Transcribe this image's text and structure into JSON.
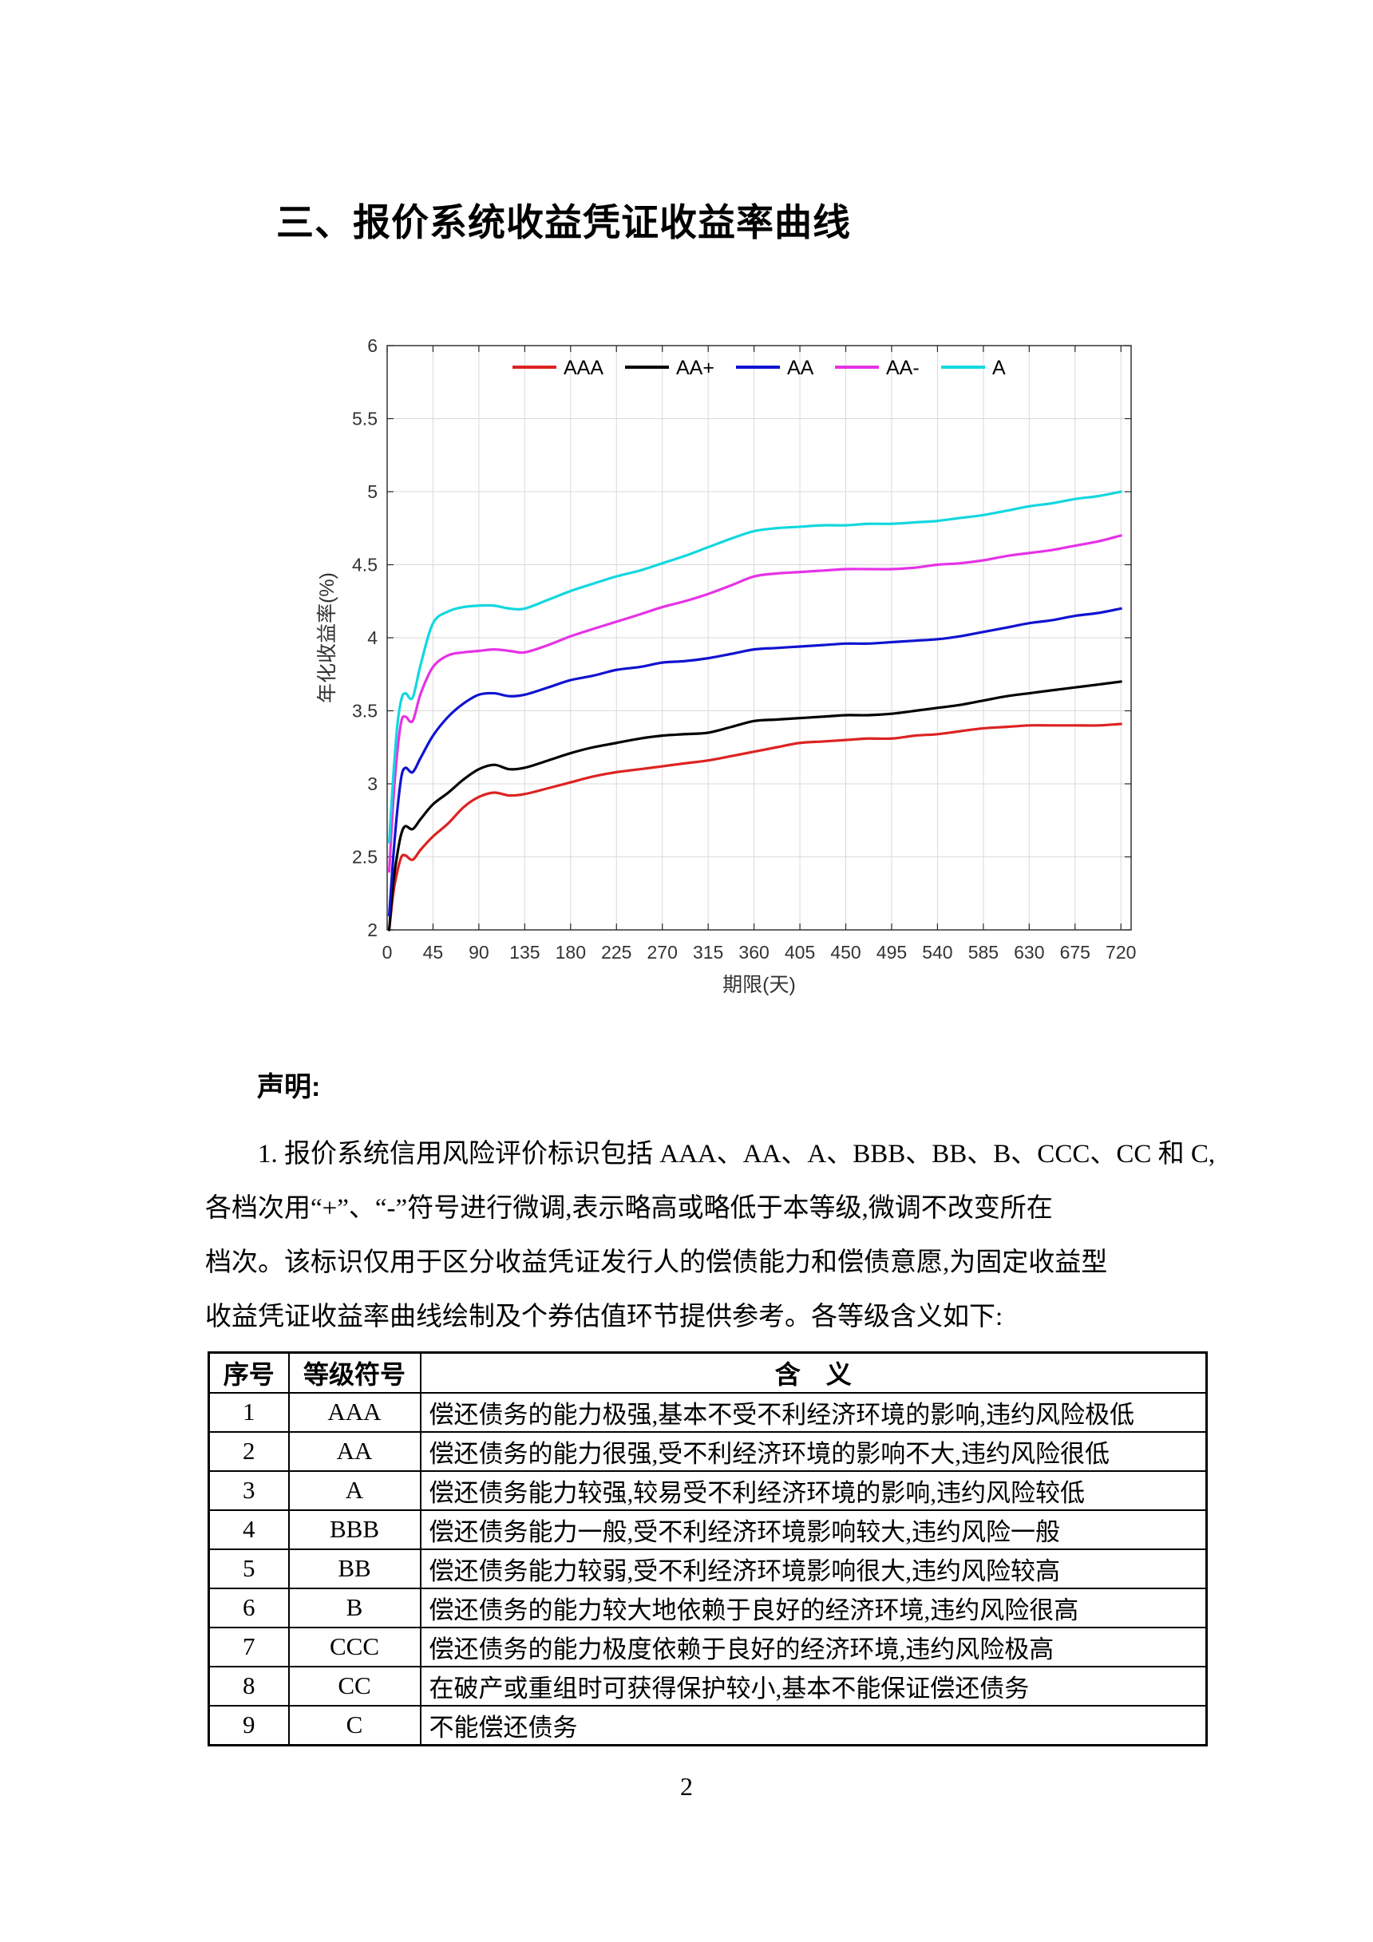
{
  "page": {
    "title": "三、报价系统收益凭证收益率曲线",
    "page_number": "2"
  },
  "statement": {
    "heading": "声明:",
    "lines": [
      "1. 报价系统信用风险评价标识包括 AAA、AA、A、BBB、BB、B、CCC、CC 和 C,",
      "各档次用“+”、“-”符号进行微调,表示略高或略低于本等级,微调不改变所在",
      "档次。该标识仅用于区分收益凭证发行人的偿债能力和偿债意愿,为固定收益型",
      "收益凭证收益率曲线绘制及个券估值环节提供参考。各等级含义如下:"
    ]
  },
  "table": {
    "headers": [
      "序号",
      "等级符号",
      "含　义"
    ],
    "rows": [
      [
        "1",
        "AAA",
        "偿还债务的能力极强,基本不受不利经济环境的影响,违约风险极低"
      ],
      [
        "2",
        "AA",
        "偿还债务的能力很强,受不利经济环境的影响不大,违约风险很低"
      ],
      [
        "3",
        "A",
        "偿还债务能力较强,较易受不利经济环境的影响,违约风险较低"
      ],
      [
        "4",
        "BBB",
        "偿还债务能力一般,受不利经济环境影响较大,违约风险一般"
      ],
      [
        "5",
        "BB",
        "偿还债务能力较弱,受不利经济环境影响很大,违约风险较高"
      ],
      [
        "6",
        "B",
        "偿还债务的能力较大地依赖于良好的经济环境,违约风险很高"
      ],
      [
        "7",
        "CCC",
        "偿还债务的能力极度依赖于良好的经济环境,违约风险极高"
      ],
      [
        "8",
        "CC",
        "在破产或重组时可获得保护较小,基本不能保证偿还债务"
      ],
      [
        "9",
        "C",
        "不能偿还债务"
      ]
    ]
  },
  "chart_data": {
    "type": "line",
    "title": "",
    "xlabel": "期限(天)",
    "ylabel": "年化收益率(%)",
    "xlim": [
      0,
      730
    ],
    "ylim": [
      2,
      6
    ],
    "xticks": [
      0,
      45,
      90,
      135,
      180,
      225,
      270,
      315,
      360,
      405,
      450,
      495,
      540,
      585,
      630,
      675,
      720
    ],
    "yticks": [
      2,
      2.5,
      3,
      3.5,
      4,
      4.5,
      5,
      5.5,
      6
    ],
    "grid": true,
    "legend_position": "top-center",
    "grid_color": "#d9d9d9",
    "axis_color": "#262626",
    "tick_label_color": "#333333",
    "x": [
      2,
      6,
      10,
      14,
      18,
      25,
      33,
      45,
      60,
      75,
      90,
      105,
      120,
      135,
      158,
      180,
      202,
      225,
      248,
      270,
      292,
      315,
      338,
      360,
      382,
      405,
      428,
      450,
      472,
      495,
      518,
      540,
      562,
      585,
      608,
      630,
      652,
      675,
      698,
      720
    ],
    "series": [
      {
        "name": "AAA",
        "color": "#dd2222",
        "values": [
          2.0,
          2.25,
          2.4,
          2.5,
          2.51,
          2.48,
          2.55,
          2.64,
          2.73,
          2.84,
          2.91,
          2.94,
          2.92,
          2.93,
          2.97,
          3.01,
          3.05,
          3.08,
          3.1,
          3.12,
          3.14,
          3.16,
          3.19,
          3.22,
          3.25,
          3.28,
          3.29,
          3.3,
          3.31,
          3.31,
          3.33,
          3.34,
          3.36,
          3.38,
          3.39,
          3.4,
          3.4,
          3.4,
          3.4,
          3.41
        ]
      },
      {
        "name": "AA+",
        "color": "#000000",
        "values": [
          2.0,
          2.32,
          2.52,
          2.66,
          2.71,
          2.69,
          2.76,
          2.86,
          2.94,
          3.03,
          3.1,
          3.13,
          3.1,
          3.11,
          3.16,
          3.21,
          3.25,
          3.28,
          3.31,
          3.33,
          3.34,
          3.35,
          3.39,
          3.43,
          3.44,
          3.45,
          3.46,
          3.47,
          3.47,
          3.48,
          3.5,
          3.52,
          3.54,
          3.57,
          3.6,
          3.62,
          3.64,
          3.66,
          3.68,
          3.7
        ]
      },
      {
        "name": "AA",
        "color": "#1013cf",
        "values": [
          2.1,
          2.5,
          2.82,
          3.05,
          3.11,
          3.08,
          3.18,
          3.33,
          3.46,
          3.55,
          3.61,
          3.62,
          3.6,
          3.61,
          3.66,
          3.71,
          3.74,
          3.78,
          3.8,
          3.83,
          3.84,
          3.86,
          3.89,
          3.92,
          3.93,
          3.94,
          3.95,
          3.96,
          3.96,
          3.97,
          3.98,
          3.99,
          4.01,
          4.04,
          4.07,
          4.1,
          4.12,
          4.15,
          4.17,
          4.2
        ]
      },
      {
        "name": "AA-",
        "color": "#e632e6",
        "values": [
          2.4,
          2.88,
          3.22,
          3.43,
          3.46,
          3.43,
          3.62,
          3.8,
          3.88,
          3.9,
          3.91,
          3.92,
          3.91,
          3.9,
          3.95,
          4.01,
          4.06,
          4.11,
          4.16,
          4.21,
          4.25,
          4.3,
          4.36,
          4.42,
          4.44,
          4.45,
          4.46,
          4.47,
          4.47,
          4.47,
          4.48,
          4.5,
          4.51,
          4.53,
          4.56,
          4.58,
          4.6,
          4.63,
          4.66,
          4.7
        ]
      },
      {
        "name": "A",
        "color": "#13d7df",
        "values": [
          2.6,
          3.05,
          3.4,
          3.58,
          3.62,
          3.59,
          3.82,
          4.1,
          4.18,
          4.21,
          4.22,
          4.22,
          4.2,
          4.2,
          4.26,
          4.32,
          4.37,
          4.42,
          4.46,
          4.51,
          4.56,
          4.62,
          4.68,
          4.73,
          4.75,
          4.76,
          4.77,
          4.77,
          4.78,
          4.78,
          4.79,
          4.8,
          4.82,
          4.84,
          4.87,
          4.9,
          4.92,
          4.95,
          4.97,
          5.0
        ]
      }
    ]
  }
}
